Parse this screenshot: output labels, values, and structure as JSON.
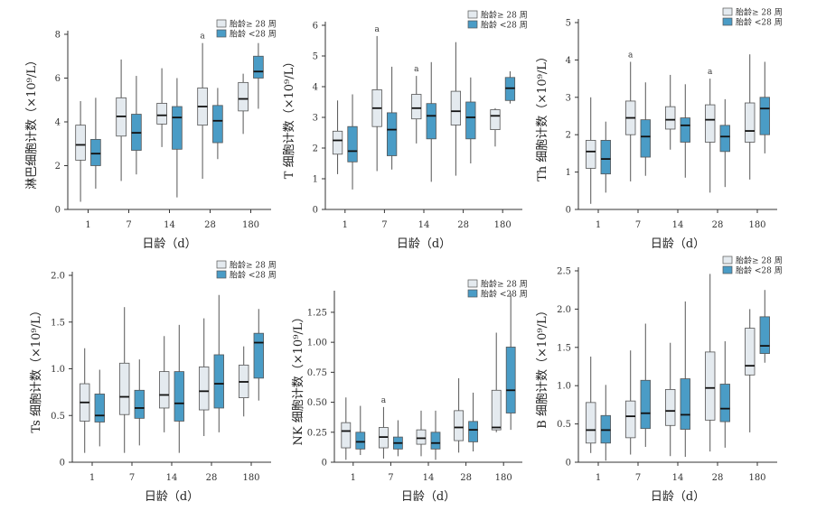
{
  "colors": {
    "ge28": "#e4eaef",
    "lt28": "#4a9cc6",
    "axis": "#333333",
    "whisker": "#555555"
  },
  "legend": {
    "ge28": "胎龄≥ 28 周",
    "lt28": "胎龄 <28 周"
  },
  "chart_data": [
    {
      "type": "box",
      "ylabel": "淋巴细胞计数（×10⁹/L）",
      "xlabel": "日龄（d）",
      "categories": [
        "1",
        "7",
        "14",
        "28",
        "180"
      ],
      "ylim": [
        0,
        8
      ],
      "yticks": [
        "0",
        "2",
        "4",
        "6",
        "8"
      ],
      "series": [
        {
          "name": "胎龄≥ 28 周",
          "boxes": [
            {
              "min": 0.35,
              "q1": 2.25,
              "median": 2.95,
              "q3": 3.85,
              "max": 4.95
            },
            {
              "min": 1.3,
              "q1": 3.35,
              "median": 4.25,
              "q3": 5.1,
              "max": 6.85
            },
            {
              "min": 2.85,
              "q1": 3.9,
              "median": 4.3,
              "q3": 4.85,
              "max": 6.45
            },
            {
              "min": 1.4,
              "q1": 3.85,
              "median": 4.7,
              "q3": 5.55,
              "max": 7.6
            },
            {
              "min": 3.45,
              "q1": 4.5,
              "median": 5.05,
              "q3": 5.8,
              "max": 6.2
            }
          ]
        },
        {
          "name": "胎龄 <28 周",
          "boxes": [
            {
              "min": 0.95,
              "q1": 2.0,
              "median": 2.55,
              "q3": 3.2,
              "max": 5.1
            },
            {
              "min": 1.6,
              "q1": 2.7,
              "median": 3.5,
              "q3": 4.35,
              "max": 6.1
            },
            {
              "min": 0.55,
              "q1": 2.75,
              "median": 4.2,
              "q3": 4.7,
              "max": 6.0
            },
            {
              "min": 2.3,
              "q1": 3.05,
              "median": 4.05,
              "q3": 4.75,
              "max": 5.55
            },
            {
              "min": 4.6,
              "q1": 6.0,
              "median": 6.3,
              "q3": 7.0,
              "max": 7.6
            }
          ]
        }
      ],
      "annotations": [
        {
          "category": "28",
          "series": 0,
          "text": "a"
        }
      ]
    },
    {
      "type": "box",
      "ylabel": "T 细胞计数（×10⁹/L）",
      "xlabel": "日龄（d）",
      "categories": [
        "1",
        "7",
        "14",
        "28",
        "180"
      ],
      "ylim": [
        0,
        6
      ],
      "yticks": [
        "0",
        "1",
        "2",
        "3",
        "4",
        "5",
        "6"
      ],
      "series": [
        {
          "name": "胎龄≥ 28 周",
          "boxes": [
            {
              "min": 1.15,
              "q1": 1.8,
              "median": 2.25,
              "q3": 2.55,
              "max": 3.55
            },
            {
              "min": 1.25,
              "q1": 2.7,
              "median": 3.3,
              "q3": 3.9,
              "max": 5.65
            },
            {
              "min": 2.15,
              "q1": 2.95,
              "median": 3.3,
              "q3": 3.75,
              "max": 4.35
            },
            {
              "min": 1.1,
              "q1": 2.75,
              "median": 3.2,
              "q3": 3.85,
              "max": 5.45
            },
            {
              "min": 2.05,
              "q1": 2.6,
              "median": 3.05,
              "q3": 3.25,
              "max": 3.3
            }
          ]
        },
        {
          "name": "胎龄 <28 周",
          "boxes": [
            {
              "min": 0.65,
              "q1": 1.55,
              "median": 1.9,
              "q3": 2.7,
              "max": 3.75
            },
            {
              "min": 1.3,
              "q1": 1.75,
              "median": 2.6,
              "q3": 3.15,
              "max": 4.65
            },
            {
              "min": 0.9,
              "q1": 2.3,
              "median": 3.05,
              "q3": 3.45,
              "max": 4.8
            },
            {
              "min": 1.5,
              "q1": 2.3,
              "median": 3.0,
              "q3": 3.5,
              "max": 4.3
            },
            {
              "min": 3.45,
              "q1": 3.55,
              "median": 3.95,
              "q3": 4.3,
              "max": 4.5
            }
          ]
        }
      ],
      "annotations": [
        {
          "category": "7",
          "series": 0,
          "text": "a"
        },
        {
          "category": "14",
          "series": 0,
          "text": "a"
        }
      ]
    },
    {
      "type": "box",
      "ylabel": "Th 细胞计数（×10⁹/L）",
      "xlabel": "日龄（d）",
      "categories": [
        "1",
        "7",
        "14",
        "28",
        "180"
      ],
      "ylim": [
        0,
        5
      ],
      "yticks": [
        "0",
        "1",
        "2",
        "3",
        "4",
        "5"
      ],
      "series": [
        {
          "name": "胎龄≥ 28 周",
          "boxes": [
            {
              "min": 0.15,
              "q1": 1.1,
              "median": 1.55,
              "q3": 1.85,
              "max": 3.0
            },
            {
              "min": 0.75,
              "q1": 2.0,
              "median": 2.45,
              "q3": 2.9,
              "max": 3.95
            },
            {
              "min": 1.6,
              "q1": 2.15,
              "median": 2.4,
              "q3": 2.75,
              "max": 3.6
            },
            {
              "min": 0.45,
              "q1": 1.8,
              "median": 2.4,
              "q3": 2.8,
              "max": 3.5
            },
            {
              "min": 0.8,
              "q1": 1.8,
              "median": 2.1,
              "q3": 2.85,
              "max": 4.15
            }
          ]
        },
        {
          "name": "胎龄 <28 周",
          "boxes": [
            {
              "min": 0.45,
              "q1": 0.95,
              "median": 1.35,
              "q3": 1.85,
              "max": 2.35
            },
            {
              "min": 0.9,
              "q1": 1.4,
              "median": 1.95,
              "q3": 2.4,
              "max": 3.4
            },
            {
              "min": 0.85,
              "q1": 1.8,
              "median": 2.25,
              "q3": 2.45,
              "max": 3.35
            },
            {
              "min": 0.6,
              "q1": 1.55,
              "median": 1.95,
              "q3": 2.25,
              "max": 2.95
            },
            {
              "min": 1.5,
              "q1": 2.0,
              "median": 2.7,
              "q3": 3.0,
              "max": 3.95
            }
          ]
        }
      ],
      "annotations": [
        {
          "category": "7",
          "series": 0,
          "text": "a"
        },
        {
          "category": "28",
          "series": 0,
          "text": "a"
        }
      ]
    },
    {
      "type": "box",
      "ylabel": "Ts 细胞计数（×10⁹/L）",
      "xlabel": "日龄（d）",
      "categories": [
        "1",
        "7",
        "14",
        "28",
        "180"
      ],
      "ylim": [
        0,
        2.0
      ],
      "yticks": [
        "0",
        "0.5",
        "1.0",
        "1.5",
        "2.0"
      ],
      "series": [
        {
          "name": "胎龄≥ 28 周",
          "boxes": [
            {
              "min": 0.1,
              "q1": 0.44,
              "median": 0.64,
              "q3": 0.84,
              "max": 1.22
            },
            {
              "min": 0.1,
              "q1": 0.51,
              "median": 0.7,
              "q3": 1.06,
              "max": 1.66
            },
            {
              "min": 0.32,
              "q1": 0.58,
              "median": 0.72,
              "q3": 0.97,
              "max": 1.35
            },
            {
              "min": 0.28,
              "q1": 0.56,
              "median": 0.76,
              "q3": 1.02,
              "max": 1.54
            },
            {
              "min": 0.49,
              "q1": 0.69,
              "median": 0.86,
              "q3": 1.04,
              "max": 1.24
            }
          ]
        },
        {
          "name": "胎龄 <28 周",
          "boxes": [
            {
              "min": 0.17,
              "q1": 0.43,
              "median": 0.5,
              "q3": 0.73,
              "max": 0.99
            },
            {
              "min": 0.18,
              "q1": 0.47,
              "median": 0.58,
              "q3": 0.77,
              "max": 1.1
            },
            {
              "min": 0.1,
              "q1": 0.44,
              "median": 0.63,
              "q3": 0.97,
              "max": 1.47
            },
            {
              "min": 0.32,
              "q1": 0.58,
              "median": 0.84,
              "q3": 1.15,
              "max": 1.79
            },
            {
              "min": 0.66,
              "q1": 0.9,
              "median": 1.28,
              "q3": 1.38,
              "max": 1.64
            }
          ]
        }
      ],
      "annotations": []
    },
    {
      "type": "box",
      "ylabel": "NK 细胞计数（×10⁹/L）",
      "xlabel": "日龄（d）",
      "categories": [
        "1",
        "7",
        "14",
        "28",
        "180"
      ],
      "ylim": [
        0,
        1.4
      ],
      "yticks": [
        "0",
        "0.25",
        "0.50",
        "0.75",
        "1.00",
        "1.25"
      ],
      "series": [
        {
          "name": "胎龄≥ 28 周",
          "boxes": [
            {
              "min": 0.02,
              "q1": 0.12,
              "median": 0.26,
              "q3": 0.33,
              "max": 0.54
            },
            {
              "min": 0.03,
              "q1": 0.12,
              "median": 0.21,
              "q3": 0.29,
              "max": 0.46
            },
            {
              "min": 0.05,
              "q1": 0.15,
              "median": 0.2,
              "q3": 0.27,
              "max": 0.43
            },
            {
              "min": 0.08,
              "q1": 0.18,
              "median": 0.29,
              "q3": 0.43,
              "max": 0.7
            },
            {
              "min": 0.25,
              "q1": 0.27,
              "median": 0.29,
              "q3": 0.6,
              "max": 1.08
            }
          ]
        },
        {
          "name": "胎龄 <28 周",
          "boxes": [
            {
              "min": 0.06,
              "q1": 0.11,
              "median": 0.17,
              "q3": 0.25,
              "max": 0.47
            },
            {
              "min": 0.05,
              "q1": 0.11,
              "median": 0.16,
              "q3": 0.21,
              "max": 0.35
            },
            {
              "min": 0.02,
              "q1": 0.11,
              "median": 0.16,
              "q3": 0.25,
              "max": 0.43
            },
            {
              "min": 0.09,
              "q1": 0.17,
              "median": 0.27,
              "q3": 0.34,
              "max": 0.58
            },
            {
              "min": 0.27,
              "q1": 0.41,
              "median": 0.6,
              "q3": 0.96,
              "max": 1.41
            }
          ]
        }
      ],
      "annotations": [
        {
          "category": "7",
          "series": 0,
          "text": "a"
        }
      ]
    },
    {
      "type": "box",
      "ylabel": "B 细胞计数（×10⁹/L）",
      "xlabel": "日龄（d）",
      "categories": [
        "1",
        "7",
        "14",
        "28",
        "180"
      ],
      "ylim": [
        0,
        2.5
      ],
      "yticks": [
        "0",
        "0.5",
        "1.0",
        "1.5",
        "2.0",
        "2.5"
      ],
      "series": [
        {
          "name": "胎龄≥ 28 周",
          "boxes": [
            {
              "min": 0.12,
              "q1": 0.25,
              "median": 0.42,
              "q3": 0.78,
              "max": 1.38
            },
            {
              "min": 0.1,
              "q1": 0.32,
              "median": 0.6,
              "q3": 0.8,
              "max": 1.46
            },
            {
              "min": 0.08,
              "q1": 0.48,
              "median": 0.67,
              "q3": 0.95,
              "max": 1.56
            },
            {
              "min": 0.14,
              "q1": 0.55,
              "median": 0.97,
              "q3": 1.44,
              "max": 2.46
            },
            {
              "min": 0.39,
              "q1": 1.14,
              "median": 1.26,
              "q3": 1.75,
              "max": 2.0
            }
          ]
        },
        {
          "name": "胎龄 <28 周",
          "boxes": [
            {
              "min": 0.02,
              "q1": 0.25,
              "median": 0.42,
              "q3": 0.61,
              "max": 1.01
            },
            {
              "min": 0.2,
              "q1": 0.44,
              "median": 0.64,
              "q3": 1.07,
              "max": 1.81
            },
            {
              "min": 0.07,
              "q1": 0.43,
              "median": 0.62,
              "q3": 1.09,
              "max": 2.1
            },
            {
              "min": 0.19,
              "q1": 0.53,
              "median": 0.7,
              "q3": 1.02,
              "max": 1.58
            },
            {
              "min": 1.3,
              "q1": 1.42,
              "median": 1.52,
              "q3": 1.9,
              "max": 2.25
            }
          ]
        }
      ],
      "annotations": []
    }
  ]
}
